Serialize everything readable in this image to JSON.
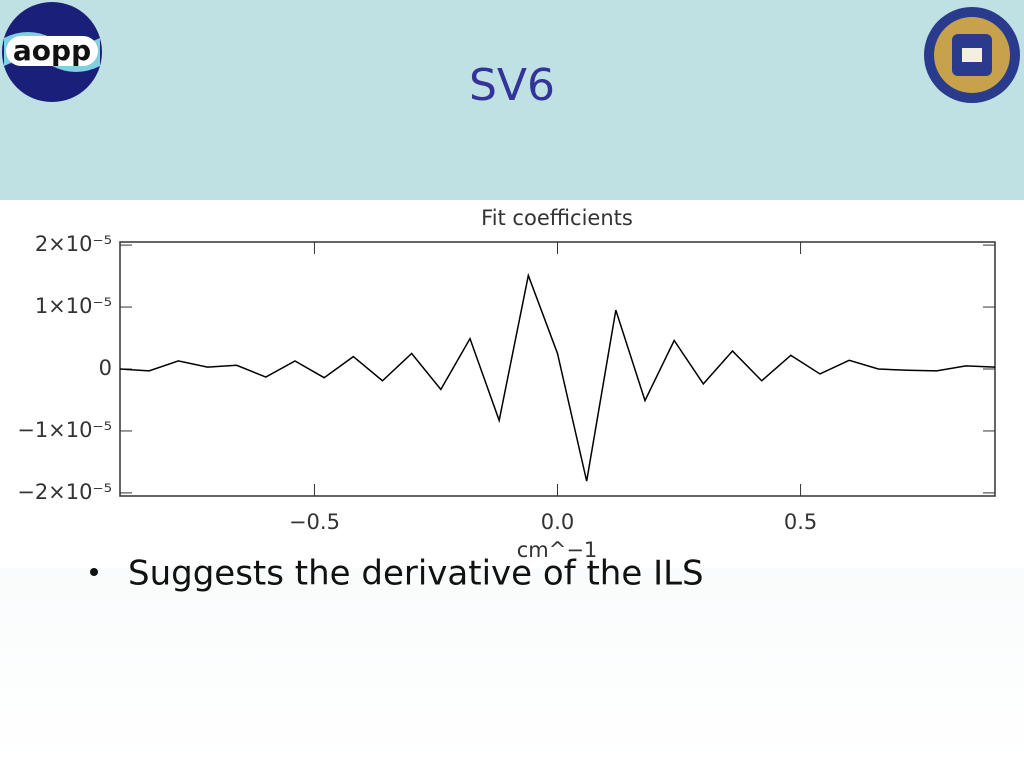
{
  "slide": {
    "title": "SV6",
    "logo_text": "aopp",
    "bullet": "Suggests the derivative of the ILS"
  },
  "chart_data": {
    "type": "line",
    "title": "Fit coefficients",
    "x_label": "cm^−1",
    "x": [
      -0.9,
      -0.84,
      -0.78,
      -0.72,
      -0.66,
      -0.6,
      -0.54,
      -0.48,
      -0.42,
      -0.36,
      -0.3,
      -0.24,
      -0.18,
      -0.12,
      -0.06,
      0,
      0.06,
      0.12,
      0.18,
      0.24,
      0.3,
      0.36,
      0.42,
      0.48,
      0.54,
      0.6,
      0.66,
      0.72,
      0.78,
      0.84,
      0.9
    ],
    "values": [
      0,
      -3e-07,
      1.3e-06,
      3e-07,
      6e-07,
      -1.3e-06,
      1.3e-06,
      -1.4e-06,
      2e-06,
      -1.9e-06,
      2.5e-06,
      -3.3e-06,
      4.9e-06,
      -8.3e-06,
      1.51e-05,
      2.5e-06,
      -1.81e-05,
      9.5e-06,
      -5.1e-06,
      4.6e-06,
      -2.4e-06,
      2.9e-06,
      -1.9e-06,
      2.2e-06,
      -8e-07,
      1.4e-06,
      0,
      -2e-07,
      -3e-07,
      5e-07,
      3e-07
    ],
    "color": "#000000",
    "xlim": [
      -0.9,
      0.9
    ],
    "xticks": [
      {
        "value": -0.5,
        "label": "−0.5"
      },
      {
        "value": 0,
        "label": "0.0"
      },
      {
        "value": 0.5,
        "label": "0.5"
      }
    ],
    "ylim": [
      -2.05e-05,
      2.05e-05
    ],
    "yticks": [
      {
        "value": 2e-05,
        "label": "2×10⁻⁵"
      },
      {
        "value": 1e-05,
        "label": "1×10⁻⁵"
      },
      0,
      {
        "value": -1e-05,
        "label": "−1×10⁻⁵"
      },
      {
        "value": -2e-05,
        "label": "−2×10⁻⁵"
      }
    ]
  }
}
